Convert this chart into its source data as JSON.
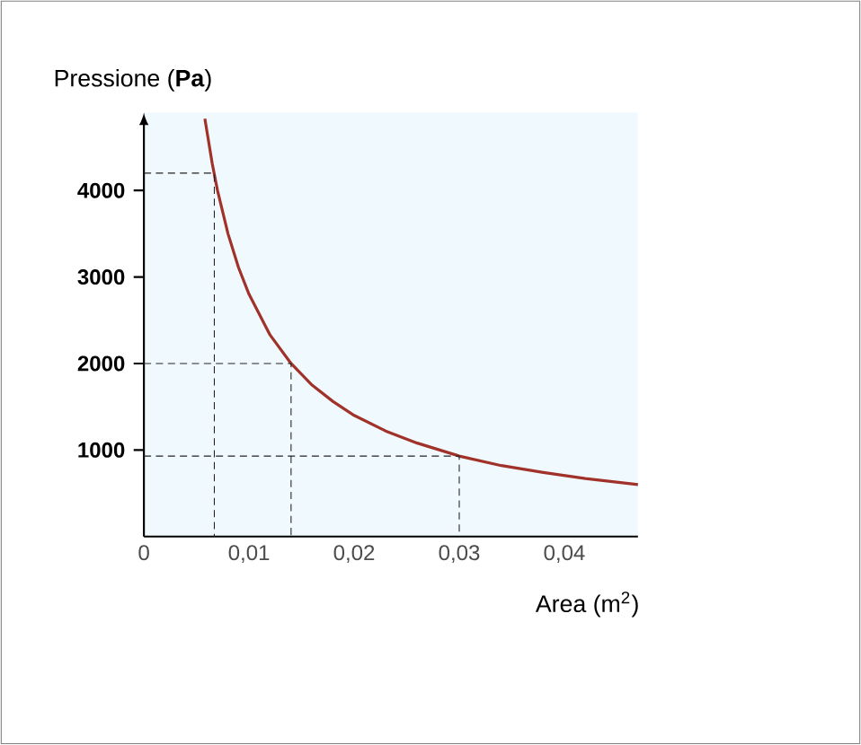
{
  "chart_data": {
    "type": "line",
    "xlabel": "Area (m$^{2}$)",
    "ylabel": "Pressione (**Pa**)",
    "xlim": [
      0,
      0.047
    ],
    "ylim": [
      0,
      4900
    ],
    "xticks": [
      0,
      {
        "value": 0.01,
        "label": "0,01"
      },
      {
        "value": 0.02,
        "label": "0,02"
      },
      {
        "value": 0.03,
        "label": "0,03"
      },
      {
        "value": 0.04,
        "label": "0,04"
      }
    ],
    "yticks": [
      1000,
      2000,
      3000,
      4000
    ],
    "grid": false,
    "series": [
      {
        "color": "#a0322a",
        "line_style": "solid",
        "x": [
          0.0058,
          0.0065,
          0.007,
          0.008,
          0.009,
          0.01,
          0.012,
          0.014,
          0.016,
          0.018,
          0.02,
          0.023,
          0.026,
          0.03,
          0.034,
          0.038,
          0.042,
          0.047
        ],
        "values": [
          4830,
          4310,
          4000,
          3500,
          3110,
          2800,
          2330,
          2000,
          1750,
          1560,
          1400,
          1220,
          1080,
          930,
          820,
          740,
          670,
          600
        ]
      },
      {
        "color": "#222222",
        "line_style": "dashed",
        "x": [
          0,
          0.0067,
          0.0067
        ],
        "values": [
          4200,
          4200,
          0
        ]
      },
      {
        "color": "#222222",
        "line_style": "dashed",
        "x": [
          0,
          0.014,
          0.014
        ],
        "values": [
          2000,
          2000,
          0
        ]
      },
      {
        "color": "#222222",
        "line_style": "dashed",
        "x": [
          0,
          0.03,
          0.03
        ],
        "values": [
          930,
          930,
          0
        ]
      }
    ]
  }
}
